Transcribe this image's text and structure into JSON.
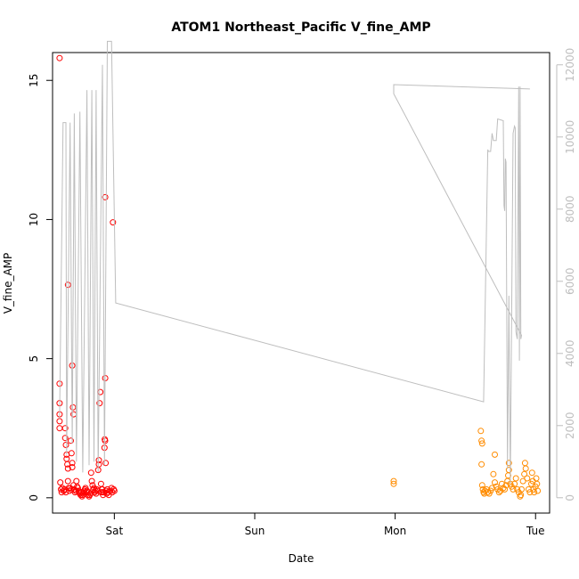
{
  "chart_data": {
    "type": "scatter",
    "title": "ATOM1 Northeast_Pacific V_fine_AMP",
    "xlabel": "Date",
    "ylabel": "V_fine_AMP",
    "x_ticks": [
      "Sat",
      "Sun",
      "Mon",
      "Tue"
    ],
    "xlim": [
      -0.44,
      3.1
    ],
    "y_left": {
      "ticks": [
        0,
        5,
        10,
        15
      ],
      "lim": [
        -0.55,
        16.0
      ]
    },
    "y_right": {
      "ticks": [
        0,
        2000,
        4000,
        6000,
        8000,
        10000,
        12000
      ],
      "lim": [
        -425,
        12340
      ],
      "color": "#bebebe"
    },
    "grid": false,
    "series": [
      {
        "marker": "circle-open",
        "color": "#ff0000",
        "axis": "left",
        "points": [
          [
            -0.39,
            15.8
          ],
          [
            -0.39,
            4.1
          ],
          [
            -0.39,
            3.4
          ],
          [
            -0.39,
            3.0
          ],
          [
            -0.39,
            2.75
          ],
          [
            -0.39,
            2.5
          ],
          [
            -0.385,
            0.55
          ],
          [
            -0.38,
            0.3
          ],
          [
            -0.375,
            0.2
          ],
          [
            -0.37,
            0.35
          ],
          [
            -0.36,
            0.25
          ],
          [
            -0.35,
            2.5
          ],
          [
            -0.35,
            2.15
          ],
          [
            -0.345,
            1.9
          ],
          [
            -0.34,
            1.55
          ],
          [
            -0.34,
            1.4
          ],
          [
            -0.335,
            1.2
          ],
          [
            -0.33,
            1.05
          ],
          [
            -0.33,
            0.6
          ],
          [
            -0.33,
            7.65
          ],
          [
            -0.325,
            0.35
          ],
          [
            -0.32,
            0.25
          ],
          [
            -0.31,
            2.05
          ],
          [
            -0.305,
            1.6
          ],
          [
            -0.3,
            1.25
          ],
          [
            -0.3,
            1.1
          ],
          [
            -0.3,
            4.75
          ],
          [
            -0.295,
            3.25
          ],
          [
            -0.29,
            3.0
          ],
          [
            -0.29,
            0.45
          ],
          [
            -0.285,
            0.3
          ],
          [
            -0.28,
            0.2
          ],
          [
            -0.275,
            0.25
          ],
          [
            -0.27,
            0.6
          ],
          [
            -0.265,
            0.4
          ],
          [
            -0.26,
            0.35
          ],
          [
            -0.25,
            0.2
          ],
          [
            -0.24,
            0.1
          ],
          [
            -0.23,
            0.05
          ],
          [
            -0.22,
            0.15
          ],
          [
            -0.21,
            0.3
          ],
          [
            -0.2,
            0.2
          ],
          [
            -0.19,
            0.1
          ],
          [
            -0.18,
            0.05
          ],
          [
            -0.17,
            0.15
          ],
          [
            -0.165,
            0.9
          ],
          [
            -0.16,
            0.6
          ],
          [
            -0.155,
            0.45
          ],
          [
            -0.15,
            0.3
          ],
          [
            -0.14,
            0.2
          ],
          [
            -0.13,
            0.15
          ],
          [
            -0.12,
            0.25
          ],
          [
            -0.115,
            1.0
          ],
          [
            -0.11,
            1.2
          ],
          [
            -0.11,
            1.35
          ],
          [
            -0.105,
            3.4
          ],
          [
            -0.1,
            3.8
          ],
          [
            -0.095,
            0.5
          ],
          [
            -0.09,
            0.3
          ],
          [
            -0.085,
            0.2
          ],
          [
            -0.08,
            0.1
          ],
          [
            -0.075,
            0.2
          ],
          [
            -0.07,
            1.8
          ],
          [
            -0.068,
            2.1
          ],
          [
            -0.066,
            2.05
          ],
          [
            -0.065,
            4.3
          ],
          [
            -0.062,
            1.25
          ],
          [
            -0.06,
            0.25
          ],
          [
            -0.055,
            0.15
          ],
          [
            -0.05,
            0.3
          ],
          [
            -0.045,
            0.2
          ],
          [
            -0.04,
            0.1
          ],
          [
            -0.065,
            10.8
          ],
          [
            -0.01,
            9.9
          ],
          [
            -0.03,
            0.25
          ],
          [
            -0.02,
            0.35
          ],
          [
            -0.015,
            0.2
          ],
          [
            -0.005,
            0.3
          ],
          [
            0.0,
            0.25
          ],
          [
            -0.355,
            0.3
          ],
          [
            -0.345,
            0.2
          ],
          [
            -0.315,
            0.35
          ],
          [
            -0.305,
            0.3
          ],
          [
            -0.255,
            0.25
          ],
          [
            -0.245,
            0.15
          ],
          [
            -0.235,
            0.2
          ],
          [
            -0.225,
            0.1
          ],
          [
            -0.215,
            0.25
          ],
          [
            -0.205,
            0.35
          ],
          [
            -0.195,
            0.25
          ],
          [
            -0.185,
            0.2
          ],
          [
            -0.175,
            0.1
          ],
          [
            -0.145,
            0.35
          ],
          [
            -0.135,
            0.25
          ],
          [
            -0.125,
            0.3
          ],
          [
            -0.095,
            0.2
          ],
          [
            -0.085,
            0.3
          ]
        ]
      },
      {
        "marker": "circle-open",
        "color": "#ff8c00",
        "axis": "left",
        "points": [
          [
            1.99,
            0.6
          ],
          [
            1.99,
            0.5
          ],
          [
            2.61,
            2.4
          ],
          [
            2.615,
            2.05
          ],
          [
            2.62,
            1.95
          ],
          [
            2.615,
            1.2
          ],
          [
            2.62,
            0.45
          ],
          [
            2.625,
            0.3
          ],
          [
            2.63,
            0.2
          ],
          [
            2.635,
            0.15
          ],
          [
            2.64,
            0.25
          ],
          [
            2.65,
            0.3
          ],
          [
            2.66,
            0.2
          ],
          [
            2.67,
            0.15
          ],
          [
            2.68,
            0.25
          ],
          [
            2.69,
            0.35
          ],
          [
            2.7,
            0.85
          ],
          [
            2.71,
            0.55
          ],
          [
            2.71,
            1.55
          ],
          [
            2.72,
            0.4
          ],
          [
            2.73,
            0.3
          ],
          [
            2.74,
            0.2
          ],
          [
            2.75,
            0.25
          ],
          [
            2.76,
            0.5
          ],
          [
            2.77,
            0.35
          ],
          [
            2.78,
            0.3
          ],
          [
            2.79,
            0.45
          ],
          [
            2.8,
            0.6
          ],
          [
            2.805,
            0.8
          ],
          [
            2.81,
            1.0
          ],
          [
            2.81,
            1.25
          ],
          [
            2.82,
            0.5
          ],
          [
            2.83,
            0.4
          ],
          [
            2.84,
            0.3
          ],
          [
            2.85,
            0.5
          ],
          [
            2.86,
            0.7
          ],
          [
            2.87,
            0.3
          ],
          [
            2.88,
            0.2
          ],
          [
            2.89,
            0.05
          ],
          [
            2.895,
            0.1
          ],
          [
            2.9,
            0.3
          ],
          [
            2.91,
            0.6
          ],
          [
            2.92,
            0.85
          ],
          [
            2.925,
            1.25
          ],
          [
            2.93,
            1.05
          ],
          [
            2.94,
            0.7
          ],
          [
            2.95,
            0.3
          ],
          [
            2.96,
            0.2
          ],
          [
            2.97,
            0.5
          ],
          [
            2.975,
            0.9
          ],
          [
            2.98,
            0.6
          ],
          [
            2.985,
            0.3
          ],
          [
            2.99,
            0.2
          ],
          [
            3.0,
            0.4
          ],
          [
            3.005,
            0.7
          ],
          [
            3.01,
            0.5
          ],
          [
            3.015,
            0.25
          ]
        ]
      },
      {
        "type": "line",
        "color": "#bebebe",
        "axis": "right",
        "points": [
          [
            -0.39,
            2200
          ],
          [
            -0.365,
            10400
          ],
          [
            -0.345,
            10400
          ],
          [
            -0.34,
            1200
          ],
          [
            -0.315,
            10400
          ],
          [
            -0.3,
            1500
          ],
          [
            -0.285,
            10650
          ],
          [
            -0.27,
            1000
          ],
          [
            -0.245,
            10700
          ],
          [
            -0.225,
            700
          ],
          [
            -0.195,
            11300
          ],
          [
            -0.18,
            900
          ],
          [
            -0.16,
            11300
          ],
          [
            -0.145,
            1000
          ],
          [
            -0.13,
            11300
          ],
          [
            -0.115,
            700
          ],
          [
            -0.085,
            12000
          ],
          [
            -0.07,
            900
          ],
          [
            -0.05,
            12650
          ],
          [
            -0.02,
            12650
          ],
          [
            0.01,
            5400
          ],
          [
            2.63,
            2660
          ],
          [
            2.66,
            9650
          ],
          [
            2.665,
            9600
          ],
          [
            2.68,
            9600
          ],
          [
            2.69,
            10100
          ],
          [
            2.7,
            9900
          ],
          [
            2.72,
            9900
          ],
          [
            2.73,
            10500
          ],
          [
            2.77,
            10450
          ],
          [
            2.775,
            8100
          ],
          [
            2.78,
            7950
          ],
          [
            2.785,
            9400
          ],
          [
            2.79,
            9300
          ],
          [
            2.8,
            800
          ],
          [
            2.81,
            5600
          ],
          [
            2.82,
            400
          ],
          [
            2.84,
            10100
          ],
          [
            2.85,
            10300
          ],
          [
            2.855,
            10250
          ],
          [
            2.86,
            4600
          ],
          [
            2.87,
            4400
          ],
          [
            2.88,
            11400
          ],
          [
            2.885,
            3800
          ],
          [
            2.89,
            11400
          ],
          [
            2.895,
            4400
          ],
          [
            2.9,
            4500
          ],
          [
            1.99,
            11200
          ],
          [
            1.99,
            11450
          ],
          [
            2.96,
            11330
          ]
        ]
      }
    ]
  }
}
